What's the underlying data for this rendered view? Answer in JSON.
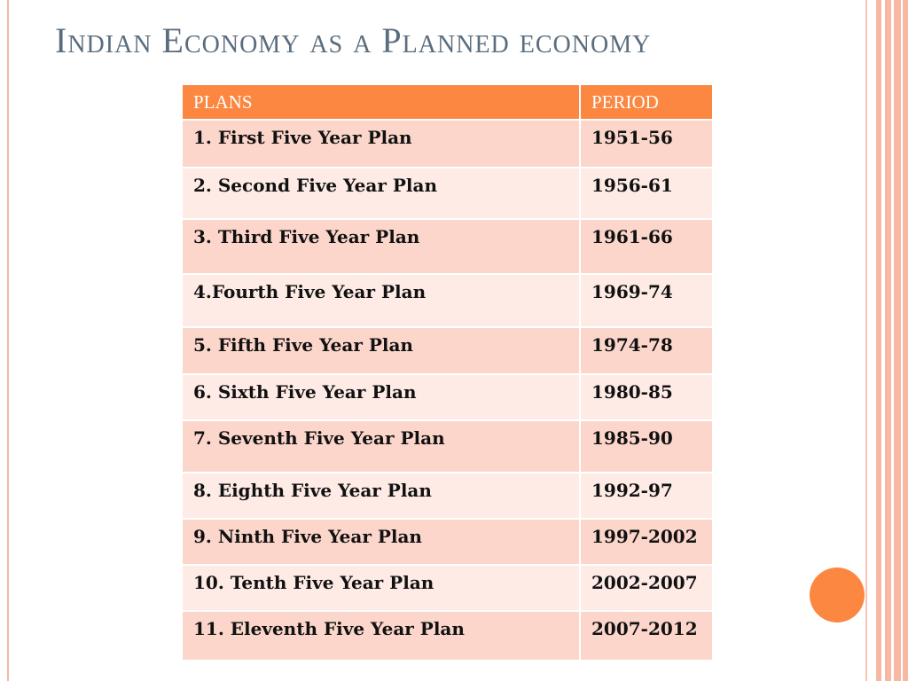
{
  "slide": {
    "title": "Indian Economy as a Planned economy"
  },
  "table": {
    "headers": [
      "PLANS",
      "PERIOD"
    ],
    "rows": [
      {
        "plan": "1. First Five Year Plan",
        "period": "1951-56"
      },
      {
        "plan": "2. Second Five Year Plan",
        "period": "1956-61"
      },
      {
        "plan": "3. Third Five Year Plan",
        "period": "1961-66"
      },
      {
        "plan": "4.Fourth Five Year Plan",
        "period": "1969-74"
      },
      {
        "plan": "5. Fifth Five Year Plan",
        "period": "1974-78"
      },
      {
        "plan": "6. Sixth Five Year Plan",
        "period": "1980-85"
      },
      {
        "plan": "7. Seventh Five Year Plan",
        "period": "1985-90"
      },
      {
        "plan": "8. Eighth Five Year Plan",
        "period": "1992-97"
      },
      {
        "plan": "9. Ninth Five Year Plan",
        "period": "1997-2002"
      },
      {
        "plan": "10. Tenth Five Year Plan",
        "period": "2002-2007"
      },
      {
        "plan": "11. Eleventh Five Year Plan",
        "period": "2007-2012"
      }
    ]
  },
  "colors": {
    "header_bg": "#fb8741",
    "row_dark": "#fcd6cb",
    "row_light": "#feebe6",
    "title_color": "#5a6d7e",
    "accent_circle": "#fb8741"
  }
}
